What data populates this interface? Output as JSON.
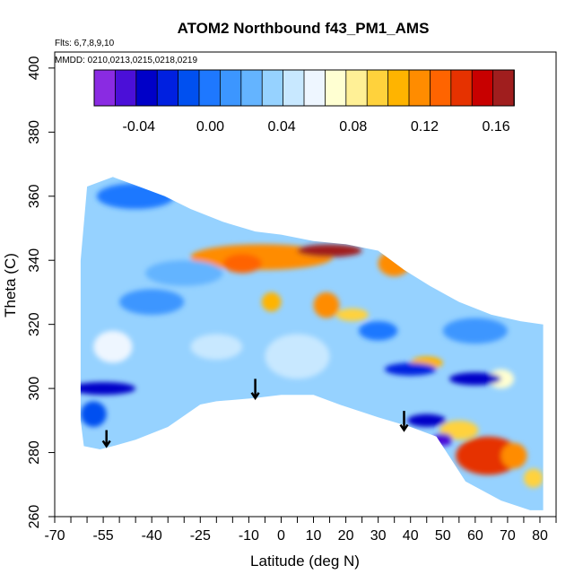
{
  "chart_data": {
    "type": "heatmap",
    "title": "ATOM2 Northbound f43_PM1_AMS",
    "annotations": [
      "Flts: 6,7,8,9,10",
      "MMDD: 0210,0213,0215,0218,0219"
    ],
    "xlabel": "Latitude (deg N)",
    "ylabel": "Theta (C)",
    "xlim": [
      -70,
      85
    ],
    "ylim": [
      260,
      405
    ],
    "x_ticks": [
      -70,
      -55,
      -40,
      -25,
      -10,
      0,
      10,
      20,
      30,
      40,
      50,
      60,
      70,
      80
    ],
    "x_tick_labels": [
      "-70",
      "-55",
      "-40",
      "-25",
      "-10",
      "0",
      "10",
      "20",
      "30",
      "40",
      "50",
      "60",
      "70",
      "80"
    ],
    "x_minor_ticks": [
      -65,
      -60,
      -50,
      -45,
      -35,
      -30,
      -20,
      -15,
      -5,
      5,
      15,
      25,
      35,
      45,
      55,
      65,
      75,
      85
    ],
    "y_ticks": [
      260,
      280,
      300,
      320,
      340,
      360,
      380,
      400
    ],
    "y_tick_labels": [
      "260",
      "280",
      "300",
      "320",
      "340",
      "360",
      "380",
      "400"
    ],
    "colorbar": {
      "range": [
        -0.065,
        0.17
      ],
      "tick_values": [
        -0.04,
        0.0,
        0.04,
        0.08,
        0.12,
        0.16
      ],
      "tick_labels": [
        "-0.04",
        "0.00",
        "0.04",
        "0.08",
        "0.12",
        "0.16"
      ],
      "colors": [
        "#8a2be2",
        "#4b0fd8",
        "#0000c8",
        "#0020e0",
        "#0050f0",
        "#1e78ff",
        "#3c96ff",
        "#64b4ff",
        "#96d2ff",
        "#c8e8ff",
        "#eef6ff",
        "#ffffd2",
        "#fff096",
        "#ffd23c",
        "#ffb400",
        "#ff8c00",
        "#ff6400",
        "#e63200",
        "#c80000",
        "#a01e1e"
      ]
    },
    "outline": [
      [
        -60,
        363
      ],
      [
        -52,
        366
      ],
      [
        -44,
        363
      ],
      [
        -36,
        360
      ],
      [
        -28,
        356
      ],
      [
        -18,
        352
      ],
      [
        -8,
        349
      ],
      [
        0,
        348
      ],
      [
        10,
        346
      ],
      [
        20,
        345
      ],
      [
        30,
        343
      ],
      [
        38,
        337
      ],
      [
        46,
        332
      ],
      [
        55,
        327
      ],
      [
        65,
        323
      ],
      [
        74,
        321
      ],
      [
        81,
        320
      ],
      [
        81,
        262
      ],
      [
        77,
        262
      ],
      [
        68,
        265
      ],
      [
        57,
        271
      ],
      [
        48,
        285
      ],
      [
        40,
        288
      ],
      [
        30,
        291
      ],
      [
        18,
        295
      ],
      [
        10,
        298
      ],
      [
        0,
        298
      ],
      [
        -8,
        297
      ],
      [
        -20,
        296
      ],
      [
        -25,
        295
      ],
      [
        -35,
        288
      ],
      [
        -45,
        284
      ],
      [
        -52,
        282
      ],
      [
        -56,
        281
      ],
      [
        -61,
        282
      ],
      [
        -62,
        290
      ],
      [
        -62,
        340
      ]
    ],
    "features": [
      {
        "lon": -6,
        "lat": 341,
        "rx": 22,
        "ry": 4,
        "value": 0.12
      },
      {
        "lon": 15,
        "lat": 343,
        "rx": 10,
        "ry": 2,
        "value": 0.16
      },
      {
        "lon": 35,
        "lat": 339,
        "rx": 5,
        "ry": 4,
        "value": 0.12
      },
      {
        "lon": -12,
        "lat": 339,
        "rx": 6,
        "ry": 3,
        "value": 0.13
      },
      {
        "lon": 14,
        "lat": 326,
        "rx": 4,
        "ry": 4,
        "value": 0.12
      },
      {
        "lon": -3,
        "lat": 327,
        "rx": 3,
        "ry": 3,
        "value": 0.1
      },
      {
        "lon": 22,
        "lat": 323,
        "rx": 5,
        "ry": 2,
        "value": 0.09
      },
      {
        "lon": 45,
        "lat": 308,
        "rx": 5,
        "ry": 2,
        "value": 0.1
      },
      {
        "lon": 64,
        "lat": 279,
        "rx": 10,
        "ry": 6,
        "value": 0.14
      },
      {
        "lon": 72,
        "lat": 279,
        "rx": 4,
        "ry": 4,
        "value": 0.12
      },
      {
        "lon": 55,
        "lat": 287,
        "rx": 6,
        "ry": 3,
        "value": 0.09
      },
      {
        "lon": 78,
        "lat": 272,
        "rx": 3,
        "ry": 3,
        "value": 0.09
      },
      {
        "lon": 68,
        "lat": 303,
        "rx": 4,
        "ry": 3,
        "value": 0.07
      },
      {
        "lon": -55,
        "lat": 300,
        "rx": 10,
        "ry": 2,
        "value": -0.04
      },
      {
        "lon": 45,
        "lat": 290,
        "rx": 6,
        "ry": 2,
        "value": -0.03
      },
      {
        "lon": 40,
        "lat": 306,
        "rx": 8,
        "ry": 2,
        "value": -0.02
      },
      {
        "lon": 60,
        "lat": 303,
        "rx": 8,
        "ry": 2,
        "value": -0.03
      },
      {
        "lon": 50,
        "lat": 284,
        "rx": 3,
        "ry": 2,
        "value": -0.05
      },
      {
        "lon": -58,
        "lat": 292,
        "rx": 4,
        "ry": 4,
        "value": -0.01
      },
      {
        "lon": -20,
        "lat": 313,
        "rx": 8,
        "ry": 4,
        "value": 0.045
      },
      {
        "lon": -52,
        "lat": 313,
        "rx": 6,
        "ry": 5,
        "value": 0.06
      },
      {
        "lon": 5,
        "lat": 310,
        "rx": 10,
        "ry": 7,
        "value": 0.05
      },
      {
        "lon": -45,
        "lat": 360,
        "rx": 12,
        "ry": 4,
        "value": 0.0
      },
      {
        "lon": -30,
        "lat": 336,
        "rx": 12,
        "ry": 4,
        "value": 0.02
      },
      {
        "lon": -40,
        "lat": 327,
        "rx": 10,
        "ry": 4,
        "value": 0.01
      },
      {
        "lon": 30,
        "lat": 318,
        "rx": 6,
        "ry": 3,
        "value": 0.0
      },
      {
        "lon": 60,
        "lat": 318,
        "rx": 10,
        "ry": 4,
        "value": 0.015
      }
    ],
    "arrows": [
      {
        "lon": -54,
        "lat_top": 287,
        "lat_tip": 282
      },
      {
        "lon": -8,
        "lat_top": 303,
        "lat_tip": 297
      },
      {
        "lon": 38,
        "lat_top": 293,
        "lat_tip": 287
      }
    ]
  }
}
